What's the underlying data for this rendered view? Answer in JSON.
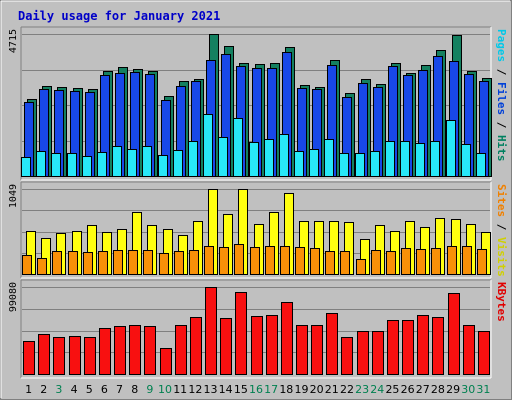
{
  "chart_data": {
    "type": "bar",
    "title": "Daily usage for January 2021",
    "categories": [
      "1",
      "2",
      "3",
      "4",
      "5",
      "6",
      "7",
      "8",
      "9",
      "10",
      "11",
      "12",
      "13",
      "14",
      "15",
      "16",
      "17",
      "18",
      "19",
      "20",
      "21",
      "22",
      "23",
      "24",
      "25",
      "26",
      "27",
      "28",
      "29",
      "30",
      "31"
    ],
    "weekend_categories": [
      "3",
      "9",
      "10",
      "16",
      "17",
      "23",
      "24",
      "30",
      "31"
    ],
    "panels": [
      {
        "id": "hits-files-pages",
        "ymax_label": "4715",
        "ylim": [
          0,
          4715
        ],
        "right_label": [
          {
            "text": "Pages",
            "color": "#00c8e8"
          },
          {
            "text": " / ",
            "color": "#000000"
          },
          {
            "text": "Files",
            "color": "#0040d8"
          },
          {
            "text": " / ",
            "color": "#000000"
          },
          {
            "text": "Hits",
            "color": "#008060"
          }
        ],
        "series": [
          {
            "name": "Hits",
            "color": "#148060",
            "values": [
              2560,
              2980,
              2940,
              2920,
              2880,
              3490,
              3620,
              3550,
              3490,
              2640,
              3170,
              3230,
              4715,
              4320,
              3750,
              3720,
              3750,
              4270,
              3020,
              2950,
              3860,
              2760,
              3220,
              3050,
              3740,
              3430,
              3680,
              4200,
              4690,
              3470,
              3250
            ]
          },
          {
            "name": "Files",
            "color": "#1848e8",
            "values": [
              2470,
              2890,
              2860,
              2820,
              2780,
              3350,
              3430,
              3450,
              3390,
              2520,
              3000,
              3140,
              3840,
              4060,
              3650,
              3580,
              3570,
              4110,
              2930,
              2880,
              3680,
              2610,
              3080,
              2950,
              3640,
              3340,
              3530,
              3970,
              3820,
              3400,
              3140
            ]
          },
          {
            "name": "Pages",
            "color": "#28e8f8",
            "values": [
              620,
              840,
              770,
              780,
              670,
              800,
              990,
              880,
              1000,
              700,
              870,
              1150,
              2070,
              1310,
              1930,
              1120,
              1240,
              1410,
              820,
              880,
              1230,
              780,
              760,
              820,
              1150,
              1160,
              1100,
              1160,
              1850,
              1060,
              750
            ]
          }
        ]
      },
      {
        "id": "visits-sites",
        "ymax_label": "1049",
        "ylim": [
          0,
          1049
        ],
        "right_label": [
          {
            "text": "Sites",
            "color": "#f08000"
          },
          {
            "text": " / ",
            "color": "#000000"
          },
          {
            "text": "Visits",
            "color": "#d0d000"
          }
        ],
        "series": [
          {
            "name": "Visits",
            "color": "#ffff10",
            "values": [
              530,
              440,
              510,
              530,
              600,
              520,
              550,
              760,
              600,
              550,
              480,
              650,
              1049,
              740,
              1049,
              620,
              770,
              1000,
              650,
              660,
              650,
              640,
              430,
              610,
              530,
              650,
              580,
              690,
              680,
              620,
              520
            ]
          },
          {
            "name": "Sites",
            "color": "#f89008",
            "values": [
              230,
              200,
              290,
              280,
              270,
              290,
              300,
              300,
              300,
              260,
              280,
              300,
              350,
              330,
              370,
              330,
              350,
              350,
              330,
              320,
              290,
              290,
              190,
              300,
              290,
              320,
              310,
              320,
              340,
              340,
              310
            ]
          }
        ]
      },
      {
        "id": "kbytes",
        "ymax_label": "99080",
        "ylim": [
          0,
          99080
        ],
        "right_label": [
          {
            "text": "KBytes",
            "color": "#e00000"
          }
        ],
        "series": [
          {
            "name": "KBytes",
            "color": "#f81010",
            "values": [
              37800,
              45000,
              41600,
              42800,
              42300,
              51900,
              54200,
              55600,
              55000,
              30000,
              55600,
              64700,
              99080,
              63500,
              93900,
              66300,
              67400,
              82300,
              55700,
              55700,
              69500,
              41600,
              49100,
              48700,
              61500,
              61500,
              67400,
              64700,
              92600,
              55800,
              48600
            ]
          }
        ]
      }
    ]
  }
}
